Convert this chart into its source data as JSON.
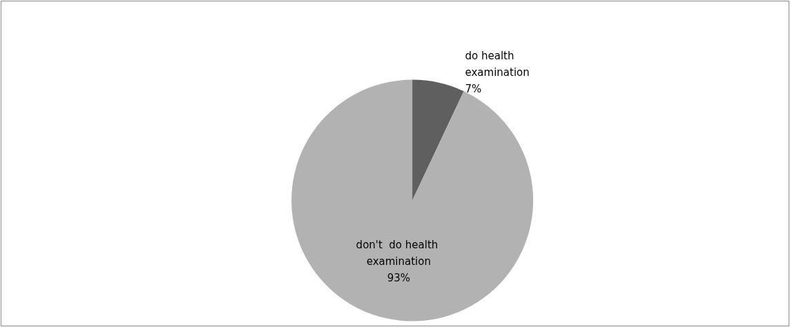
{
  "chart_data": {
    "type": "pie",
    "categories": [
      "do health examination",
      "don't  do health examination"
    ],
    "values": [
      7,
      93
    ],
    "value_labels": [
      "7%",
      "93%"
    ],
    "colors": [
      "#5f5f5f",
      "#b2b2b2"
    ]
  }
}
